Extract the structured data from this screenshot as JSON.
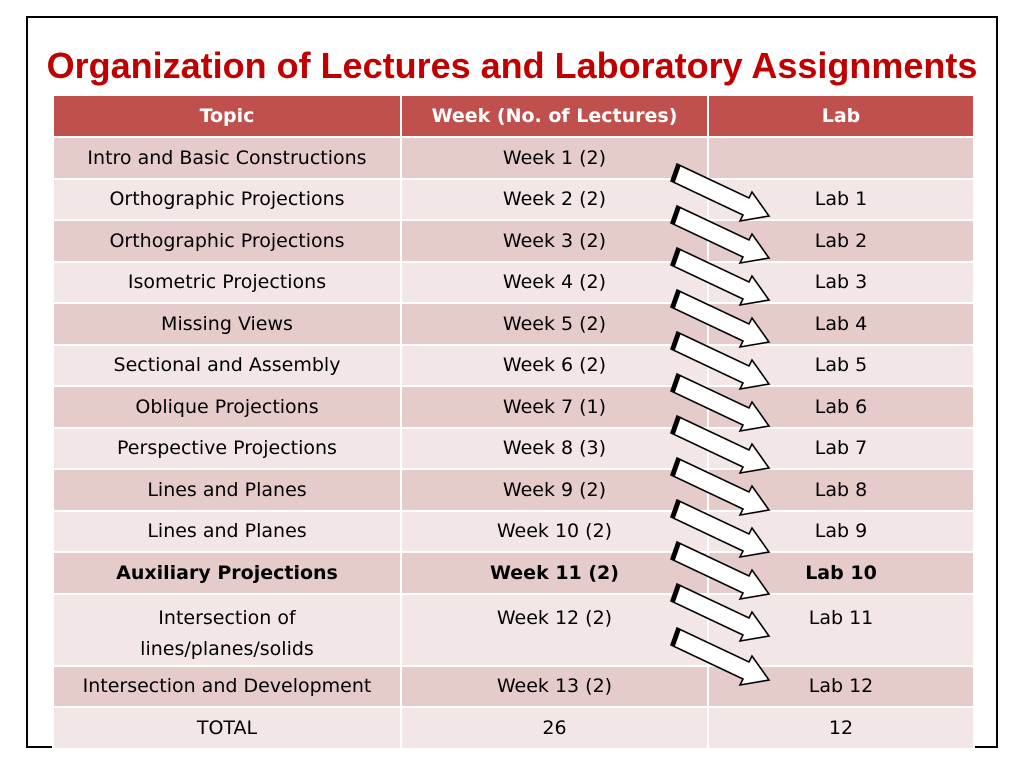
{
  "title": "Organization of Lectures and Laboratory Assignments",
  "table": {
    "headers": [
      "Topic",
      "Week (No. of Lectures)",
      "Lab"
    ],
    "rows": [
      {
        "topic": "Intro and Basic Constructions",
        "week": "Week 1 (2)",
        "lab": ""
      },
      {
        "topic": "Orthographic Projections",
        "week": "Week 2 (2)",
        "lab": "Lab 1"
      },
      {
        "topic": "Orthographic Projections",
        "week": "Week 3 (2)",
        "lab": "Lab 2"
      },
      {
        "topic": "Isometric Projections",
        "week": "Week 4 (2)",
        "lab": "Lab 3"
      },
      {
        "topic": "Missing Views",
        "week": "Week 5 (2)",
        "lab": "Lab 4"
      },
      {
        "topic": "Sectional and Assembly",
        "week": "Week 6 (2)",
        "lab": "Lab 5"
      },
      {
        "topic": "Oblique Projections",
        "week": "Week 7 (1)",
        "lab": "Lab 6"
      },
      {
        "topic": "Perspective Projections",
        "week": "Week 8 (3)",
        "lab": "Lab 7"
      },
      {
        "topic": "Lines and Planes",
        "week": "Week 9 (2)",
        "lab": "Lab 8"
      },
      {
        "topic": "Lines and Planes",
        "week": "Week 10 (2)",
        "lab": "Lab 9"
      },
      {
        "topic": "Auxiliary Projections",
        "week": "Week 11 (2)",
        "lab": "Lab 10"
      },
      {
        "topic": "Intersection of lines/planes/solids",
        "week": "Week 12 (2)",
        "lab": "Lab 11"
      },
      {
        "topic": "Intersection and Development",
        "week": "Week 13 (2)",
        "lab": "Lab 12"
      },
      {
        "topic": "TOTAL",
        "week": "26",
        "lab": "12"
      }
    ]
  },
  "colors": {
    "title": "#c00000",
    "header_bg": "#c0504d",
    "row_dark": "#e6cbcb",
    "row_light": "#f3e6e6"
  },
  "icons": {
    "week_to_lab_arrow": "right-down-arrow-icon"
  }
}
